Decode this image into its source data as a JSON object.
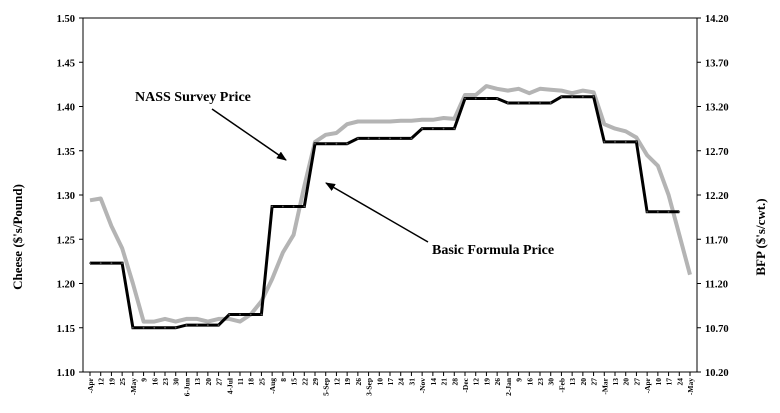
{
  "chart_data": {
    "type": "line",
    "ylabel_left": "Cheese ($'s/Pound)",
    "ylabel_right": "BFP ($'s/cwt.)",
    "left_axis": {
      "ylim": [
        1.1,
        1.5
      ],
      "ticks": [
        "1.10",
        "1.15",
        "1.20",
        "1.25",
        "1.30",
        "1.35",
        "1.40",
        "1.45",
        "1.50"
      ]
    },
    "right_axis": {
      "ylim": [
        10.2,
        14.2
      ],
      "ticks": [
        "10.20",
        "10.70",
        "11.20",
        "11.70",
        "12.20",
        "12.70",
        "13.20",
        "13.70",
        "14.20"
      ]
    },
    "x_labels": [
      "-Apr",
      "12",
      "19",
      "25",
      "-May",
      "9",
      "16",
      "23",
      "30",
      "6-Jun",
      "13",
      "20",
      "27",
      "4-Jul",
      "11",
      "18",
      "25",
      "-Aug",
      "8",
      "15",
      "22",
      "29",
      "5-Sep",
      "12",
      "19",
      "26",
      "3-Sep",
      "10",
      "17",
      "24",
      "31",
      "-Nov",
      "14",
      "21",
      "28",
      "-Dec",
      "12",
      "19",
      "26",
      "2-Jan",
      "9",
      "16",
      "23",
      "30",
      "-Feb",
      "13",
      "20",
      "27",
      "-Mar",
      "13",
      "20",
      "27",
      "-Apr",
      "10",
      "17",
      "24",
      "-May"
    ],
    "series": [
      {
        "name": "NASS Survey Price",
        "axis": "left",
        "color": "#b4b4b4",
        "values": [
          1.294,
          1.296,
          1.265,
          1.24,
          1.2,
          1.157,
          1.157,
          1.16,
          1.157,
          1.16,
          1.16,
          1.157,
          1.16,
          1.16,
          1.157,
          1.165,
          1.18,
          1.205,
          1.235,
          1.255,
          1.31,
          1.36,
          1.368,
          1.37,
          1.38,
          1.383,
          1.383,
          1.383,
          1.383,
          1.384,
          1.384,
          1.385,
          1.385,
          1.387,
          1.386,
          1.413,
          1.413,
          1.423,
          1.42,
          1.418,
          1.42,
          1.415,
          1.42,
          1.419,
          1.418,
          1.415,
          1.418,
          1.416,
          1.38,
          1.375,
          1.372,
          1.365,
          1.345,
          1.333,
          1.3,
          1.255,
          1.21
        ]
      },
      {
        "name": "Basic Formula Price",
        "axis": "right",
        "color": "#000000",
        "values": [
          11.43,
          11.43,
          11.43,
          11.43,
          10.7,
          10.7,
          10.7,
          10.7,
          10.7,
          10.73,
          10.73,
          10.73,
          10.73,
          10.85,
          10.85,
          10.85,
          10.85,
          12.07,
          12.07,
          12.07,
          12.07,
          12.78,
          12.78,
          12.78,
          12.78,
          12.84,
          12.84,
          12.84,
          12.84,
          12.84,
          12.84,
          12.95,
          12.95,
          12.95,
          12.95,
          13.29,
          13.29,
          13.29,
          13.29,
          13.24,
          13.24,
          13.24,
          13.24,
          13.24,
          13.31,
          13.31,
          13.31,
          13.31,
          12.8,
          12.8,
          12.8,
          12.8,
          12.01,
          12.01,
          12.01,
          12.01,
          null
        ]
      }
    ],
    "annotations": [
      {
        "text": "NASS Survey Price"
      },
      {
        "text": "Basic Formula Price"
      }
    ],
    "grid": false,
    "legend": "none"
  }
}
